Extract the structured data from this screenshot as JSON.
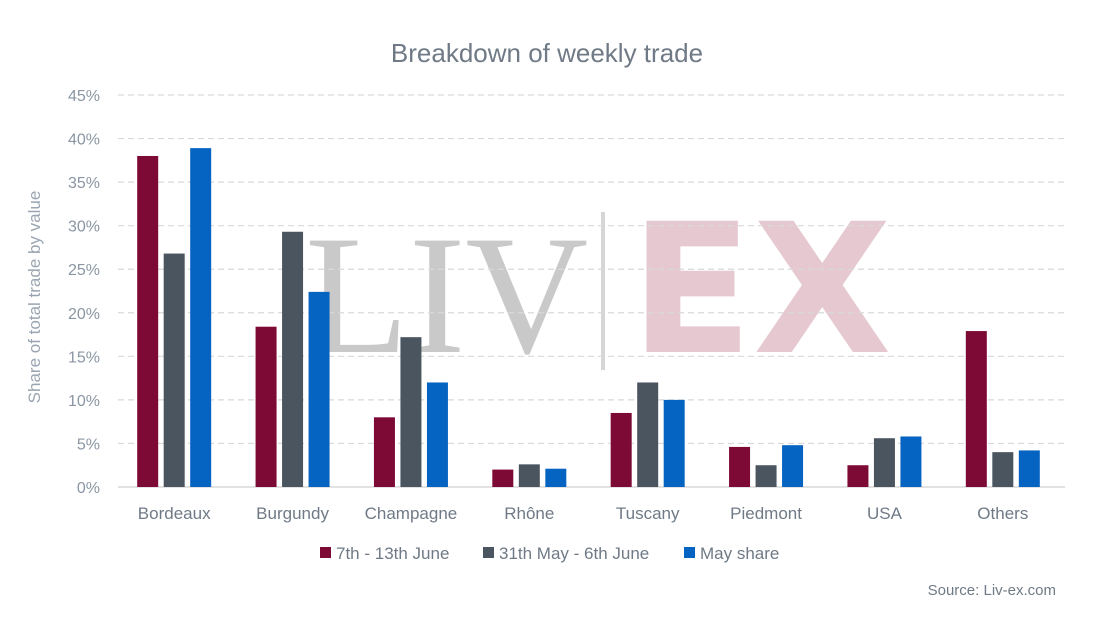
{
  "chart_data": {
    "type": "bar",
    "title": "Breakdown of weekly trade",
    "ylabel": "Share of total trade by value",
    "xlabel": "",
    "ylim": [
      0,
      45
    ],
    "yticks": [
      "0%",
      "5%",
      "10%",
      "15%",
      "20%",
      "25%",
      "30%",
      "35%",
      "40%",
      "45%"
    ],
    "categories": [
      "Bordeaux",
      "Burgundy",
      "Champagne",
      "Rhône",
      "Tuscany",
      "Piedmont",
      "USA",
      "Others"
    ],
    "series": [
      {
        "name": "7th - 13th June",
        "color": "#7d0a35",
        "values": [
          38.0,
          18.4,
          8.0,
          2.0,
          8.5,
          4.6,
          2.5,
          17.9
        ]
      },
      {
        "name": "31th May - 6th June",
        "color": "#4a5560",
        "values": [
          26.8,
          29.3,
          17.2,
          2.6,
          12.0,
          2.5,
          5.6,
          4.0
        ]
      },
      {
        "name": "May share",
        "color": "#0563c1",
        "values": [
          38.9,
          22.4,
          12.0,
          2.1,
          10.0,
          4.8,
          5.8,
          4.2
        ]
      }
    ],
    "grid": true,
    "legend_position": "bottom"
  },
  "watermark": {
    "left": "LIV",
    "right": "EX"
  },
  "source": "Source: Liv-ex.com"
}
